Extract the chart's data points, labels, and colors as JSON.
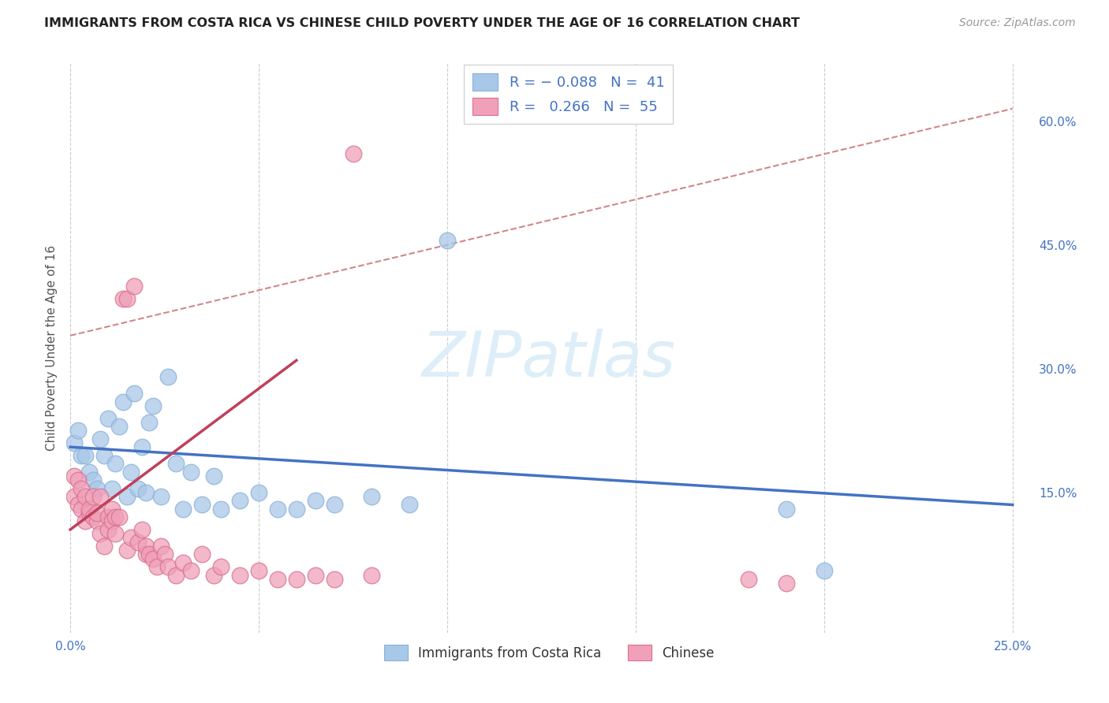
{
  "title": "IMMIGRANTS FROM COSTA RICA VS CHINESE CHILD POVERTY UNDER THE AGE OF 16 CORRELATION CHART",
  "source": "Source: ZipAtlas.com",
  "ylabel": "Child Poverty Under the Age of 16",
  "blue_R": "-0.088",
  "blue_N": "41",
  "pink_R": "0.266",
  "pink_N": "55",
  "blue_color": "#a8c8e8",
  "pink_color": "#f0a0b8",
  "blue_line_color": "#4472c4",
  "pink_line_color": "#c0405a",
  "dash_line_color": "#d08888",
  "watermark_color": "#ddeef8",
  "xlim": [
    -0.001,
    0.255
  ],
  "ylim": [
    -0.02,
    0.67
  ],
  "xtick_positions": [
    0.0,
    0.05,
    0.1,
    0.15,
    0.2,
    0.25
  ],
  "xtick_labels": [
    "0.0%",
    "",
    "",
    "",
    "",
    "25.0%"
  ],
  "ytick_positions": [
    0.0,
    0.15,
    0.3,
    0.45,
    0.6
  ],
  "ytick_labels": [
    "",
    "15.0%",
    "30.0%",
    "45.0%",
    "60.0%"
  ],
  "blue_line": {
    "x0": 0.0,
    "y0": 0.205,
    "x1": 0.25,
    "y1": 0.135
  },
  "pink_line": {
    "x0": 0.0,
    "y0": 0.105,
    "x1": 0.06,
    "y1": 0.31
  },
  "dash_line": {
    "x0": 0.0,
    "y0": 0.34,
    "x1": 0.25,
    "y1": 0.615
  },
  "blue_x": [
    0.001,
    0.002,
    0.003,
    0.004,
    0.005,
    0.006,
    0.007,
    0.008,
    0.009,
    0.01,
    0.011,
    0.012,
    0.013,
    0.014,
    0.015,
    0.016,
    0.017,
    0.018,
    0.019,
    0.02,
    0.021,
    0.022,
    0.024,
    0.026,
    0.028,
    0.03,
    0.032,
    0.035,
    0.038,
    0.04,
    0.045,
    0.05,
    0.055,
    0.06,
    0.065,
    0.07,
    0.08,
    0.09,
    0.1,
    0.19,
    0.2
  ],
  "blue_y": [
    0.21,
    0.225,
    0.195,
    0.195,
    0.175,
    0.165,
    0.155,
    0.215,
    0.195,
    0.24,
    0.155,
    0.185,
    0.23,
    0.26,
    0.145,
    0.175,
    0.27,
    0.155,
    0.205,
    0.15,
    0.235,
    0.255,
    0.145,
    0.29,
    0.185,
    0.13,
    0.175,
    0.135,
    0.17,
    0.13,
    0.14,
    0.15,
    0.13,
    0.13,
    0.14,
    0.135,
    0.145,
    0.135,
    0.455,
    0.13,
    0.055
  ],
  "pink_x": [
    0.001,
    0.001,
    0.002,
    0.002,
    0.003,
    0.003,
    0.004,
    0.004,
    0.005,
    0.005,
    0.006,
    0.006,
    0.007,
    0.007,
    0.008,
    0.008,
    0.009,
    0.01,
    0.01,
    0.011,
    0.011,
    0.012,
    0.012,
    0.013,
    0.014,
    0.015,
    0.015,
    0.016,
    0.017,
    0.018,
    0.019,
    0.02,
    0.02,
    0.021,
    0.022,
    0.023,
    0.024,
    0.025,
    0.026,
    0.028,
    0.03,
    0.032,
    0.035,
    0.038,
    0.04,
    0.045,
    0.05,
    0.055,
    0.06,
    0.065,
    0.07,
    0.075,
    0.08,
    0.18,
    0.19
  ],
  "pink_y": [
    0.17,
    0.145,
    0.165,
    0.135,
    0.155,
    0.13,
    0.145,
    0.115,
    0.125,
    0.13,
    0.12,
    0.145,
    0.115,
    0.125,
    0.1,
    0.145,
    0.085,
    0.12,
    0.105,
    0.13,
    0.115,
    0.1,
    0.12,
    0.12,
    0.385,
    0.08,
    0.385,
    0.095,
    0.4,
    0.09,
    0.105,
    0.075,
    0.085,
    0.075,
    0.07,
    0.06,
    0.085,
    0.075,
    0.06,
    0.05,
    0.065,
    0.055,
    0.075,
    0.05,
    0.06,
    0.05,
    0.055,
    0.045,
    0.045,
    0.05,
    0.045,
    0.56,
    0.05,
    0.045,
    0.04
  ]
}
